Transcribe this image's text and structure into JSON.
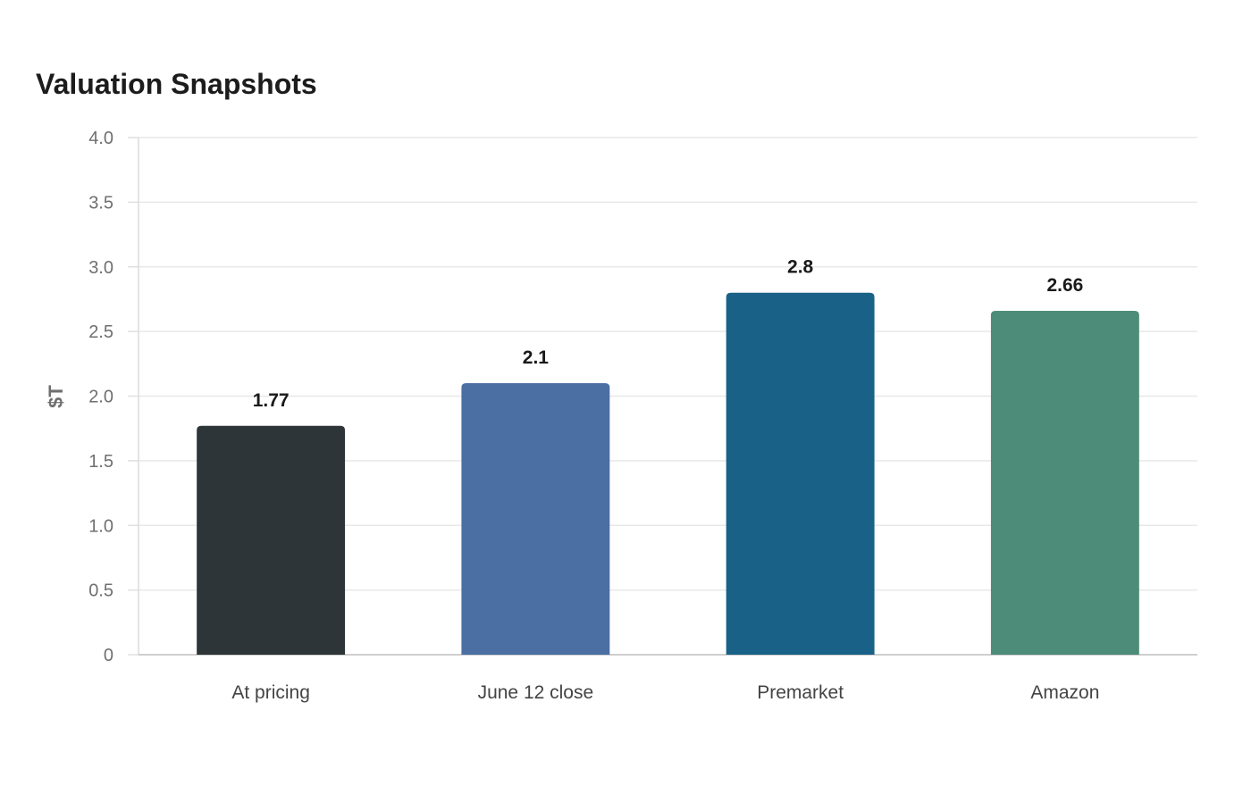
{
  "chart_data": {
    "type": "bar",
    "title": "Valuation Snapshots",
    "xlabel": "",
    "ylabel": "$T",
    "categories": [
      "At pricing",
      "June 12 close",
      "Premarket",
      "Amazon"
    ],
    "values": [
      1.77,
      2.1,
      2.8,
      2.66
    ],
    "value_labels": [
      "1.77",
      "2.1",
      "2.8",
      "2.66"
    ],
    "colors": [
      "#2e3538",
      "#4b6ea3",
      "#196187",
      "#4e8c7a"
    ],
    "ylim": [
      0,
      4.0
    ],
    "yticks": [
      0,
      0.5,
      1.0,
      1.5,
      2.0,
      2.5,
      3.0,
      3.5,
      4.0
    ],
    "ytick_labels": [
      "0",
      "0.5",
      "1.0",
      "1.5",
      "2.0",
      "2.5",
      "3.0",
      "3.5",
      "4.0"
    ],
    "grid": true,
    "legend": "none"
  }
}
